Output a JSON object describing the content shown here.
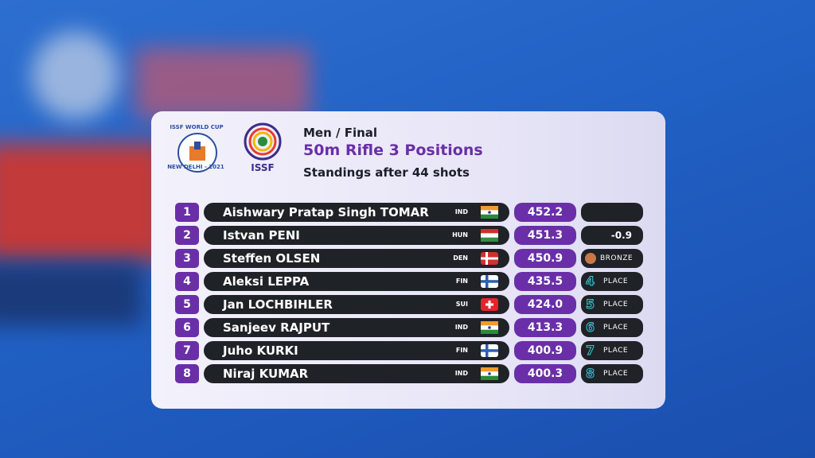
{
  "logos": {
    "world_cup": "ISSF WORLD CUP",
    "venue": "NEW DELHI - 2021",
    "federation": "ISSF"
  },
  "header": {
    "stage": "Men / Final",
    "event": "50m Rifle 3 Positions",
    "status": "Standings after 44 shots"
  },
  "standings": [
    {
      "rank": 1,
      "name": "Aishwary Pratap Singh TOMAR",
      "nation": "IND",
      "score": "452.2"
    },
    {
      "rank": 2,
      "name": "Istvan PENI",
      "nation": "HUN",
      "score": "451.3",
      "gap": "-0.9"
    },
    {
      "rank": 3,
      "name": "Steffen OLSEN",
      "nation": "DEN",
      "score": "450.9",
      "medal": "BRONZE"
    },
    {
      "rank": 4,
      "name": "Aleksi LEPPA",
      "nation": "FIN",
      "score": "435.5",
      "place": 4,
      "place_label": "PLACE"
    },
    {
      "rank": 5,
      "name": "Jan LOCHBIHLER",
      "nation": "SUI",
      "score": "424.0",
      "place": 5,
      "place_label": "PLACE"
    },
    {
      "rank": 6,
      "name": "Sanjeev RAJPUT",
      "nation": "IND",
      "score": "413.3",
      "place": 6,
      "place_label": "PLACE"
    },
    {
      "rank": 7,
      "name": "Juho KURKI",
      "nation": "FIN",
      "score": "400.9",
      "place": 7,
      "place_label": "PLACE"
    },
    {
      "rank": 8,
      "name": "Niraj KUMAR",
      "nation": "IND",
      "score": "400.3",
      "place": 8,
      "place_label": "PLACE"
    }
  ]
}
